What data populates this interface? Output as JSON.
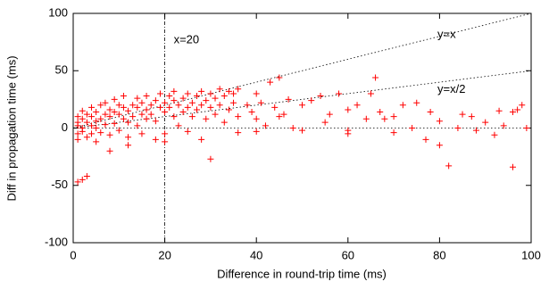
{
  "chart_data": {
    "type": "scatter",
    "x_label": "Difference in round-trip time (ms)",
    "y_label": "Diff in propagation time (ms)",
    "xlim": [
      0,
      100
    ],
    "ylim": [
      -100,
      100
    ],
    "xticks": [
      0,
      20,
      40,
      60,
      80,
      100
    ],
    "yticks": [
      -100,
      -50,
      0,
      50,
      100
    ],
    "color": "#ff0000",
    "marker": "+",
    "reference_lines": [
      {
        "slope": 1,
        "label": "y=x"
      },
      {
        "slope": 0.5,
        "label": "y=x/2"
      },
      {
        "slope": 0
      }
    ],
    "vline": {
      "x": 20,
      "label": "x=20"
    },
    "x": [
      1,
      1,
      1,
      1,
      1,
      2,
      2,
      2,
      2,
      1,
      3,
      2,
      3,
      3,
      3,
      4,
      4,
      4,
      4,
      5,
      5,
      5,
      5,
      6,
      6,
      6,
      7,
      7,
      7,
      8,
      8,
      8,
      9,
      9,
      9,
      10,
      10,
      10,
      11,
      11,
      11,
      12,
      12,
      12,
      13,
      13,
      14,
      14,
      14,
      15,
      15,
      15,
      16,
      16,
      16,
      17,
      17,
      18,
      18,
      18,
      19,
      19,
      20,
      20,
      20,
      21,
      21,
      22,
      22,
      22,
      23,
      23,
      24,
      24,
      25,
      25,
      25,
      26,
      26,
      27,
      27,
      28,
      28,
      28,
      29,
      29,
      30,
      30,
      31,
      31,
      32,
      32,
      33,
      33,
      34,
      34,
      35,
      35,
      36,
      36,
      30,
      12,
      8,
      20,
      38,
      39,
      40,
      40,
      41,
      42,
      43,
      44,
      45,
      45,
      46,
      47,
      48,
      50,
      52,
      54,
      55,
      56,
      58,
      60,
      60,
      62,
      64,
      65,
      66,
      67,
      68,
      70,
      72,
      74,
      75,
      77,
      78,
      80,
      80,
      82,
      84,
      85,
      87,
      88,
      90,
      92,
      93,
      94,
      96,
      96,
      97,
      98,
      99,
      36,
      40,
      50,
      60,
      70
    ],
    "values": [
      5,
      -5,
      10,
      -10,
      2,
      8,
      -3,
      15,
      -45,
      -47,
      -42,
      0,
      5,
      12,
      -8,
      10,
      2,
      -5,
      18,
      6,
      14,
      -12,
      0,
      8,
      20,
      -4,
      12,
      3,
      22,
      10,
      -6,
      16,
      14,
      4,
      25,
      12,
      -2,
      20,
      8,
      18,
      28,
      15,
      5,
      -8,
      20,
      10,
      18,
      2,
      26,
      12,
      22,
      -5,
      16,
      8,
      28,
      20,
      12,
      24,
      6,
      -10,
      18,
      30,
      14,
      22,
      -5,
      18,
      28,
      10,
      24,
      32,
      20,
      2,
      26,
      14,
      30,
      18,
      -3,
      22,
      10,
      28,
      16,
      32,
      20,
      -10,
      24,
      8,
      30,
      18,
      26,
      12,
      34,
      20,
      28,
      5,
      32,
      16,
      30,
      22,
      10,
      34,
      -27,
      -15,
      -20,
      -12,
      20,
      14,
      30,
      8,
      22,
      2,
      40,
      18,
      44,
      10,
      12,
      25,
      0,
      20,
      24,
      28,
      5,
      12,
      30,
      16,
      -2,
      20,
      8,
      30,
      44,
      14,
      8,
      10,
      20,
      0,
      22,
      -10,
      14,
      6,
      -15,
      -33,
      0,
      12,
      10,
      -2,
      5,
      -6,
      15,
      2,
      -34,
      14,
      16,
      20,
      0,
      -4,
      -3,
      -2,
      -5,
      -4
    ]
  }
}
